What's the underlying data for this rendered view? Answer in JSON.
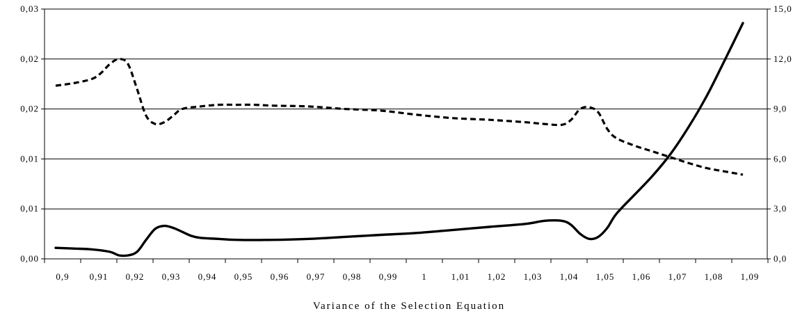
{
  "chart_data": {
    "type": "line",
    "title": "",
    "xlabel": "Variance of the Selection Equation",
    "ylabel_left": "",
    "ylabel_right": "",
    "x_tick_labels": [
      "0,9",
      "0,91",
      "0,92",
      "0,93",
      "0,94",
      "0,95",
      "0,96",
      "0,97",
      "0,98",
      "0,99",
      "1",
      "1,01",
      "1,02",
      "1,03",
      "1,04",
      "1,05",
      "1,06",
      "1,07",
      "1,08",
      "1,09"
    ],
    "y_left_tick_labels": [
      "0,00",
      "0,01",
      "0,01",
      "0,02",
      "0,02",
      "0,03"
    ],
    "y_right_tick_labels": [
      "0,0",
      "3,0",
      "6,0",
      "9,0",
      "12,0",
      "15,0"
    ],
    "y_left_lim": [
      0,
      0.025
    ],
    "y_right_lim": [
      0,
      15
    ],
    "grid": "horizontal",
    "series": [
      {
        "axis": "left",
        "style": "solid",
        "x": [
          0.9,
          0.905,
          0.91,
          0.915,
          0.9175,
          0.92,
          0.9225,
          0.925,
          0.9275,
          0.93,
          0.9325,
          0.935,
          0.9375,
          0.94,
          0.945,
          0.95,
          0.96,
          0.97,
          0.98,
          0.99,
          1.0,
          1.01,
          1.02,
          1.03,
          1.035,
          1.04,
          1.0425,
          1.045,
          1.0475,
          1.05,
          1.0525,
          1.055,
          1.06,
          1.065,
          1.07,
          1.075,
          1.08,
          1.085,
          1.09
        ],
        "values": [
          0.0011,
          0.00103,
          0.00095,
          0.0007,
          0.00035,
          0.00035,
          0.0007,
          0.0019,
          0.003,
          0.0033,
          0.0031,
          0.0027,
          0.0023,
          0.0021,
          0.002,
          0.0019,
          0.0019,
          0.002,
          0.0022,
          0.0024,
          0.0026,
          0.0029,
          0.0032,
          0.0035,
          0.0038,
          0.0038,
          0.0034,
          0.0025,
          0.002,
          0.0022,
          0.0031,
          0.0045,
          0.0064,
          0.0083,
          0.0105,
          0.0132,
          0.0163,
          0.0199,
          0.0236
        ]
      },
      {
        "axis": "right",
        "style": "dashed",
        "x": [
          0.9,
          0.905,
          0.91,
          0.9125,
          0.915,
          0.9175,
          0.92,
          0.9225,
          0.925,
          0.9275,
          0.93,
          0.9325,
          0.935,
          0.94,
          0.945,
          0.95,
          0.955,
          0.96,
          0.97,
          0.98,
          0.99,
          1.0,
          1.01,
          1.02,
          1.03,
          1.035,
          1.04,
          1.0425,
          1.045,
          1.0475,
          1.05,
          1.0525,
          1.055,
          1.06,
          1.065,
          1.07,
          1.075,
          1.08,
          1.085,
          1.09
        ],
        "values": [
          10.4,
          10.55,
          10.8,
          11.15,
          11.7,
          12.0,
          11.7,
          10.2,
          8.6,
          8.1,
          8.2,
          8.6,
          9.0,
          9.15,
          9.25,
          9.25,
          9.25,
          9.2,
          9.15,
          9.0,
          8.9,
          8.65,
          8.45,
          8.35,
          8.2,
          8.1,
          8.05,
          8.35,
          9.0,
          9.1,
          8.8,
          7.8,
          7.25,
          6.8,
          6.45,
          6.1,
          5.75,
          5.45,
          5.25,
          5.05
        ]
      }
    ]
  }
}
